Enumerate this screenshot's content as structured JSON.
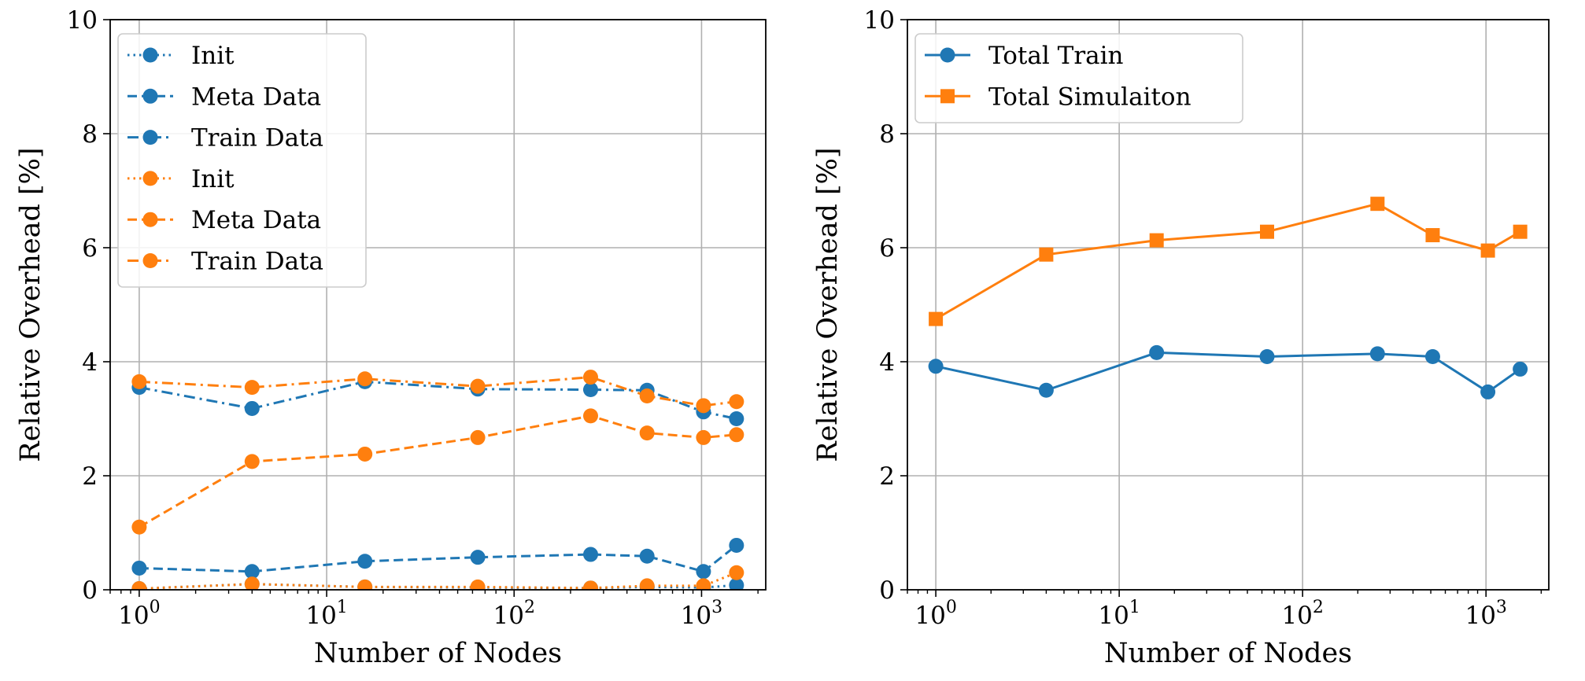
{
  "chart_data": [
    {
      "type": "line",
      "xscale": "log",
      "xlabel": "Number of Nodes",
      "ylabel": "Relative Overhead [%]",
      "xlim": [
        0.7,
        2200
      ],
      "ylim": [
        0,
        10
      ],
      "yticks": [
        "0",
        "2",
        "4",
        "6",
        "8",
        "10"
      ],
      "xticks": [
        {
          "base": "10",
          "exp": "0"
        },
        {
          "base": "10",
          "exp": "1"
        },
        {
          "base": "10",
          "exp": "2"
        },
        {
          "base": "10",
          "exp": "3"
        }
      ],
      "grid": true,
      "legend_position": "top-left",
      "x": [
        1,
        4,
        16,
        64,
        256,
        512,
        1024,
        1536
      ],
      "series": [
        {
          "name": "Init",
          "color": "#1f77b4",
          "dash": "dotted",
          "marker": "circle",
          "values": [
            0.02,
            0.1,
            0.05,
            0.04,
            0.03,
            0.05,
            0.04,
            0.08
          ]
        },
        {
          "name": "Meta Data",
          "color": "#1f77b4",
          "dash": "dashed",
          "marker": "circle",
          "values": [
            0.38,
            0.32,
            0.5,
            0.57,
            0.62,
            0.59,
            0.32,
            0.78
          ]
        },
        {
          "name": "Train Data",
          "color": "#1f77b4",
          "dash": "dashdot",
          "marker": "circle",
          "values": [
            3.55,
            3.18,
            3.65,
            3.52,
            3.51,
            3.5,
            3.12,
            3.0
          ]
        },
        {
          "name": "Init",
          "color": "#ff7f0e",
          "dash": "dotted",
          "marker": "circle",
          "values": [
            0.02,
            0.1,
            0.05,
            0.05,
            0.03,
            0.07,
            0.07,
            0.3
          ]
        },
        {
          "name": "Meta Data",
          "color": "#ff7f0e",
          "dash": "dashed",
          "marker": "circle",
          "values": [
            1.1,
            2.25,
            2.38,
            2.67,
            3.05,
            2.75,
            2.67,
            2.72
          ]
        },
        {
          "name": "Train Data",
          "color": "#ff7f0e",
          "dash": "dashdot",
          "marker": "circle",
          "values": [
            3.65,
            3.55,
            3.7,
            3.57,
            3.73,
            3.4,
            3.23,
            3.3
          ]
        }
      ]
    },
    {
      "type": "line",
      "xscale": "log",
      "xlabel": "Number of Nodes",
      "ylabel": "Relative Overhead [%]",
      "xlim": [
        0.7,
        2200
      ],
      "ylim": [
        0,
        10
      ],
      "yticks": [
        "0",
        "2",
        "4",
        "6",
        "8",
        "10"
      ],
      "xticks": [
        {
          "base": "10",
          "exp": "0"
        },
        {
          "base": "10",
          "exp": "1"
        },
        {
          "base": "10",
          "exp": "2"
        },
        {
          "base": "10",
          "exp": "3"
        }
      ],
      "grid": true,
      "legend_position": "top-left",
      "x": [
        1,
        4,
        16,
        64,
        256,
        512,
        1024,
        1536
      ],
      "series": [
        {
          "name": "Total Train",
          "color": "#1f77b4",
          "dash": "solid",
          "marker": "circle",
          "values": [
            3.92,
            3.5,
            4.16,
            4.09,
            4.14,
            4.09,
            3.47,
            3.87
          ]
        },
        {
          "name": "Total Simulaiton",
          "color": "#ff7f0e",
          "dash": "solid",
          "marker": "square",
          "values": [
            4.75,
            5.88,
            6.13,
            6.28,
            6.77,
            6.22,
            5.95,
            6.28
          ]
        }
      ]
    }
  ]
}
